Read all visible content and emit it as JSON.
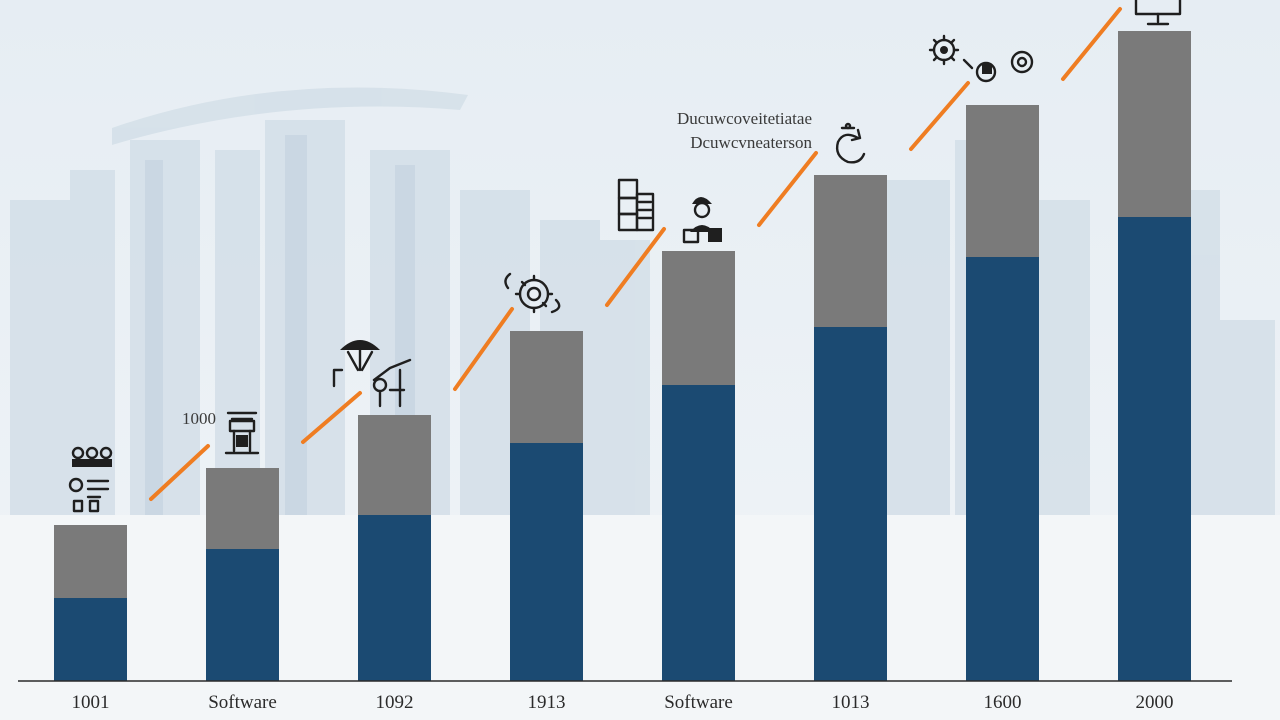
{
  "chart_data": {
    "type": "bar",
    "stacked": true,
    "categories": [
      "1001",
      "Software",
      "1092",
      "1913",
      "Software",
      "1013",
      "1600",
      "2000"
    ],
    "series": [
      {
        "values": [
          83,
          132,
          166,
          238,
          296,
          354,
          424,
          464
        ],
        "color": "#1b4a72"
      },
      {
        "values": [
          73,
          81,
          100,
          112,
          134,
          152,
          152,
          186
        ],
        "color": "#7a7a7a"
      }
    ],
    "trend_line": {
      "color": "#ef7d22"
    },
    "ylim": [
      0,
      650
    ],
    "grid": false,
    "legend": "none"
  },
  "annotations": {
    "top_note_line1": "Ducuwcoveitetiatae",
    "top_note_line2": "Dcuwcvneaterson",
    "small_label": "1000"
  },
  "icons": [
    "team-gears-icon",
    "crane-icon",
    "construction-equipment-icon",
    "gear-cycle-icon",
    "server-stack-icon",
    "engineer-icon",
    "refresh-gear-icon",
    "gears-cluster-icon",
    "monitor-icon"
  ],
  "background": {
    "skyline_color": "#cfdbe5",
    "sky_top": "#e9eff4",
    "ground": "#f4f7f9"
  }
}
